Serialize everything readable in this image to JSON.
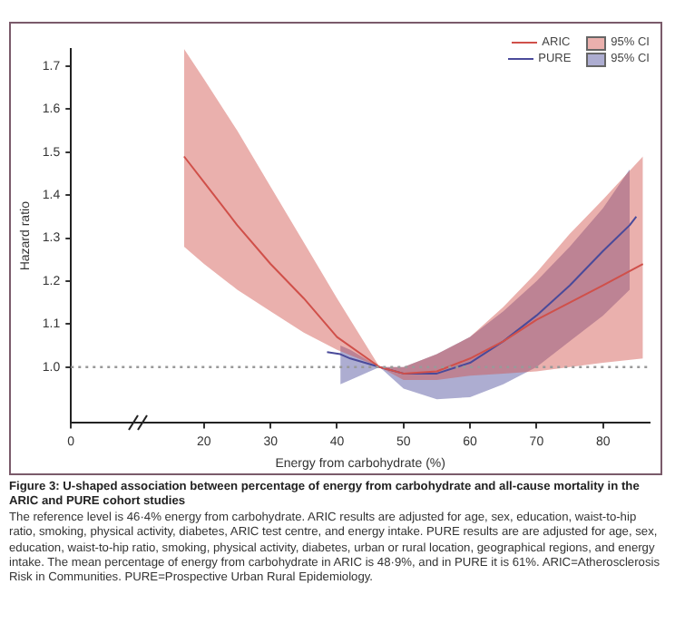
{
  "chart_data": {
    "type": "line",
    "title": "Figure 3: U-shaped association between percentage of energy from carbohydrate and all-cause mortality in the ARIC and PURE cohort studies",
    "xlabel": "Energy from carbohydrate (%)",
    "ylabel": "Hazard ratio",
    "legend_title": "95% CI",
    "annotations": [
      "The reference level is 46·4% energy from carbohydrate. ARIC results are adjusted for age, sex, education, waist-to-hip ratio, smoking, physical activity, diabetes, ARIC test centre, and energy intake. PURE results are are adjusted for age, sex, education, waist-to-hip ratio, smoking, physical activity, diabetes, urban or rural location, geographical regions, and energy intake. The mean percentage of energy from carbohydrate in ARIC is 48·9%, and in PURE it is 61%. ARIC=Atherosclerosis Risk in Communities. PURE=Prospective Urban Rural Epidemiology."
    ],
    "series": [
      {
        "name": "ARIC",
        "color": "#d0504a",
        "x": [
          17,
          20,
          25,
          30,
          35,
          40,
          46.4,
          50,
          55,
          60,
          65,
          70,
          75,
          80,
          86
        ],
        "values": [
          1.49,
          1.43,
          1.33,
          1.24,
          1.16,
          1.07,
          1.0,
          0.985,
          0.99,
          1.02,
          1.06,
          1.11,
          1.15,
          1.19,
          1.24
        ],
        "upper": [
          1.74,
          1.67,
          1.55,
          1.42,
          1.29,
          1.16,
          1.0,
          1.0,
          1.03,
          1.07,
          1.14,
          1.22,
          1.31,
          1.39,
          1.49
        ],
        "lower": [
          1.28,
          1.24,
          1.18,
          1.13,
          1.08,
          1.04,
          1.0,
          0.97,
          0.97,
          0.98,
          0.985,
          0.99,
          1.0,
          1.01,
          1.02
        ]
      },
      {
        "name": "PURE",
        "color": "#4a4a9a",
        "x": [
          38.5,
          40.5,
          42,
          46.4,
          50,
          55,
          60,
          65,
          70,
          75,
          80,
          84,
          85
        ],
        "values": [
          1.035,
          1.03,
          1.02,
          1.0,
          0.985,
          0.985,
          1.01,
          1.06,
          1.12,
          1.19,
          1.27,
          1.33,
          1.35
        ],
        "upper": [
          null,
          1.05,
          1.04,
          1.0,
          1.0,
          1.03,
          1.07,
          1.13,
          1.2,
          1.28,
          1.37,
          1.46,
          null
        ],
        "lower": [
          null,
          0.96,
          0.97,
          1.0,
          0.95,
          0.925,
          0.93,
          0.96,
          1.0,
          1.06,
          1.12,
          1.18,
          null
        ]
      }
    ],
    "xlim": [
      0,
      87
    ],
    "xticks": [
      0,
      20,
      30,
      40,
      50,
      60,
      70,
      80
    ],
    "ylim": [
      0.87,
      1.74
    ],
    "yticks": [
      {
        "value": 1.0,
        "label": "1.0"
      },
      1.1,
      1.2,
      1.3,
      1.4,
      1.5,
      1.6,
      1.7
    ],
    "ref_lines": [
      {
        "axis": "y",
        "value": 1.0,
        "color": "#999999",
        "line_style": "dotted"
      }
    ],
    "grid": false,
    "legend": "top right",
    "marker": "none",
    "line_style": "solid"
  }
}
